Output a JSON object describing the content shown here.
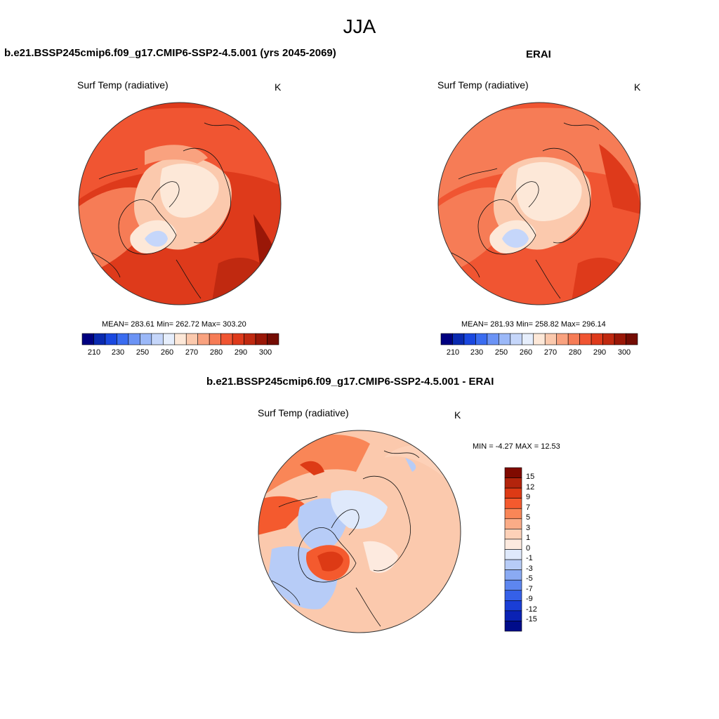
{
  "figure": {
    "season": "JJA"
  },
  "panels": [
    {
      "title": "b.e21.BSSP245cmip6.f09_g17.CMIP6-SSP2-4.5.001 (yrs 2045-2069)",
      "variable": "Surf Temp (radiative)",
      "units": "K",
      "stats": "MEAN= 283.61  Min= 262.72  Max= 303.20",
      "colorbar": {
        "labels": [
          "210",
          "230",
          "250",
          "260",
          "270",
          "280",
          "290",
          "300"
        ],
        "colors": [
          "#000080",
          "#0a2ab0",
          "#1a48e0",
          "#3a6cf0",
          "#6b93f5",
          "#9bb8f8",
          "#c5d6fa",
          "#e6eefc",
          "#fde8d8",
          "#fbc9ad",
          "#f9a27f",
          "#f67c56",
          "#f05532",
          "#de3a1b",
          "#c02910",
          "#9a1707",
          "#740c03"
        ]
      }
    },
    {
      "title": "ERAI",
      "variable": "Surf Temp (radiative)",
      "units": "K",
      "stats": "MEAN= 281.93  Min= 258.82  Max= 296.14",
      "colorbar": {
        "labels": [
          "210",
          "230",
          "250",
          "260",
          "270",
          "280",
          "290",
          "300"
        ],
        "colors": [
          "#000080",
          "#0a2ab0",
          "#1a48e0",
          "#3a6cf0",
          "#6b93f5",
          "#9bb8f8",
          "#c5d6fa",
          "#e6eefc",
          "#fde8d8",
          "#fbc9ad",
          "#f9a27f",
          "#f67c56",
          "#f05532",
          "#de3a1b",
          "#c02910",
          "#9a1707",
          "#740c03"
        ]
      }
    },
    {
      "title": "b.e21.BSSP245cmip6.f09_g17.CMIP6-SSP2-4.5.001 - ERAI",
      "variable": "Surf Temp (radiative)",
      "units": "K",
      "stats": "MIN =  -4.27 MAX =  12.53",
      "colorbar": {
        "labels": [
          "15",
          "12",
          "9",
          "7",
          "5",
          "3",
          "1",
          "0",
          "-1",
          "-3",
          "-5",
          "-7",
          "-9",
          "-12",
          "-15"
        ],
        "colors": [
          "#800a00",
          "#b3240c",
          "#dd3a15",
          "#f45a2e",
          "#f98657",
          "#fbac87",
          "#fdd1b8",
          "#fdeadf",
          "#dfe9fb",
          "#b7ccf7",
          "#8aaaf3",
          "#5d86ef",
          "#3560e8",
          "#1a3ed6",
          "#0a22b4",
          "#000c8a"
        ]
      }
    }
  ]
}
